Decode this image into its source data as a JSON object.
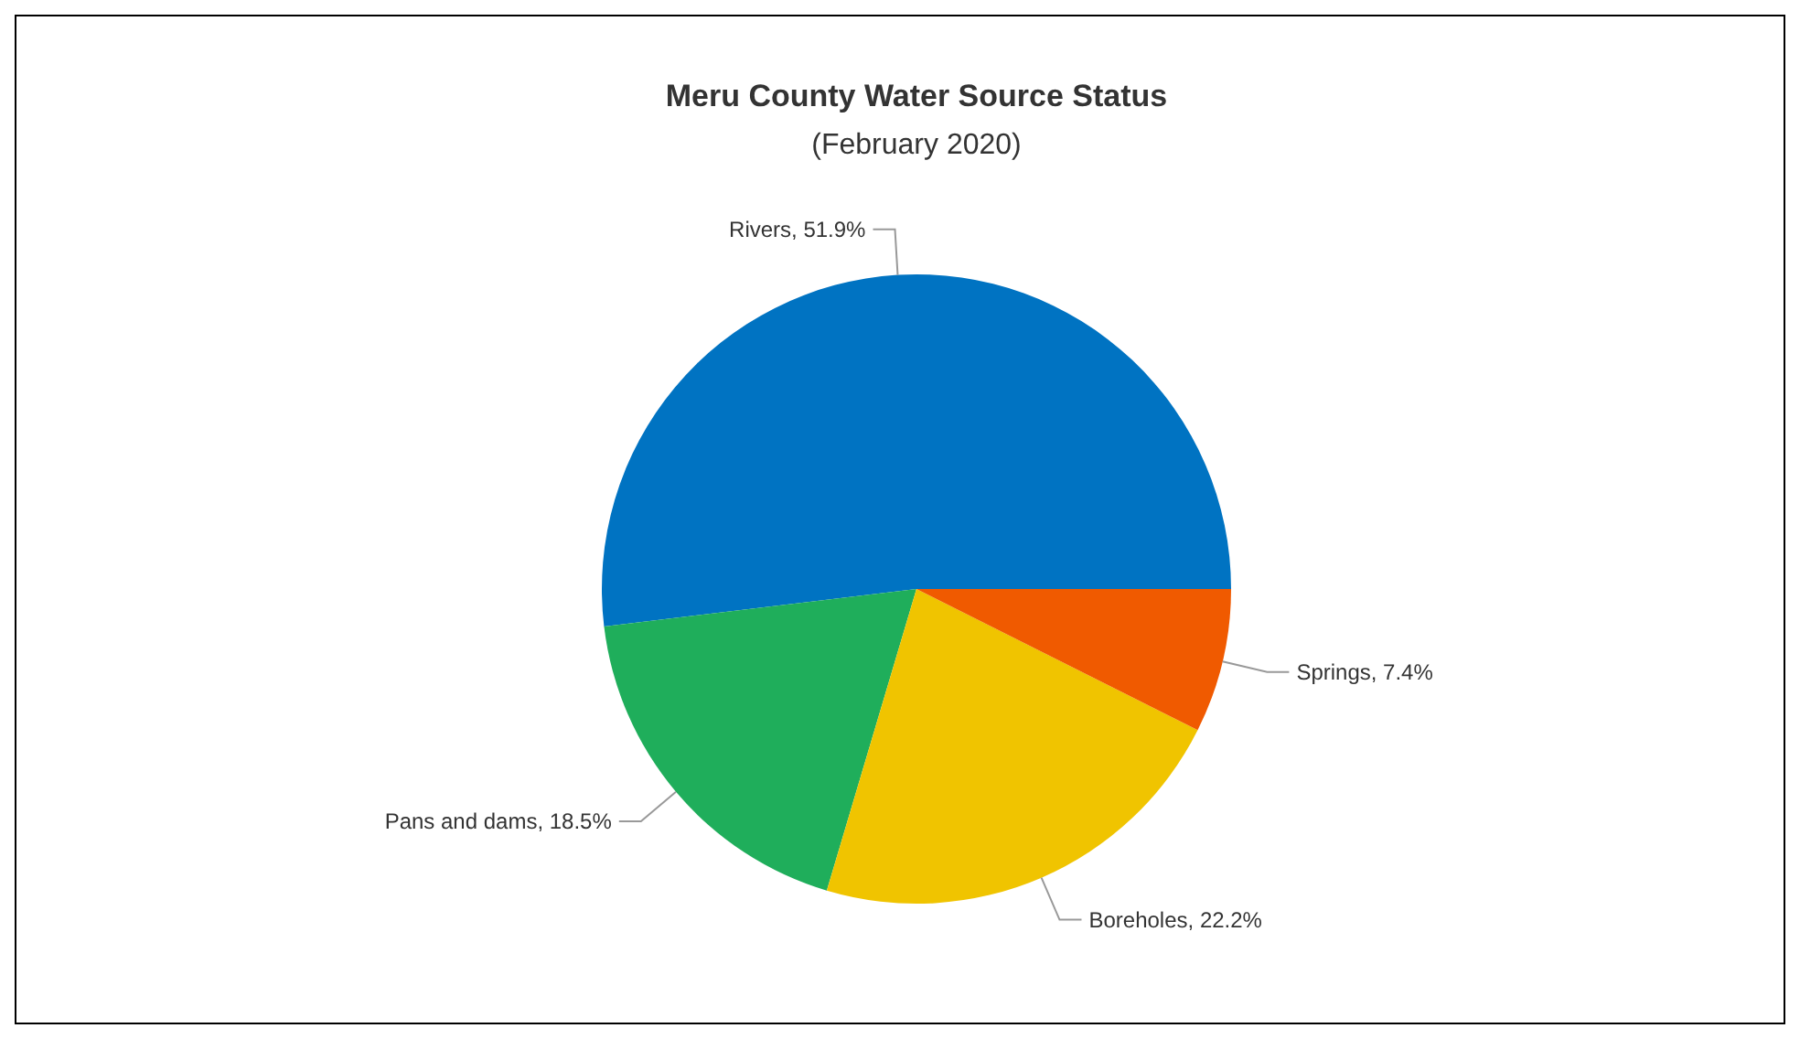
{
  "chart_data": {
    "type": "pie",
    "title": "Meru County Water Source Status",
    "subtitle": "(February 2020)",
    "categories": [
      "Rivers",
      "Pans and dams",
      "Boreholes",
      "Springs"
    ],
    "values": [
      51.9,
      18.5,
      22.2,
      7.4
    ],
    "colors": [
      "#0073c2",
      "#1fae5b",
      "#f0c400",
      "#f05a00"
    ],
    "value_labels": [
      "51.9%",
      "18.5%",
      "22.2%",
      "7.4%"
    ]
  }
}
